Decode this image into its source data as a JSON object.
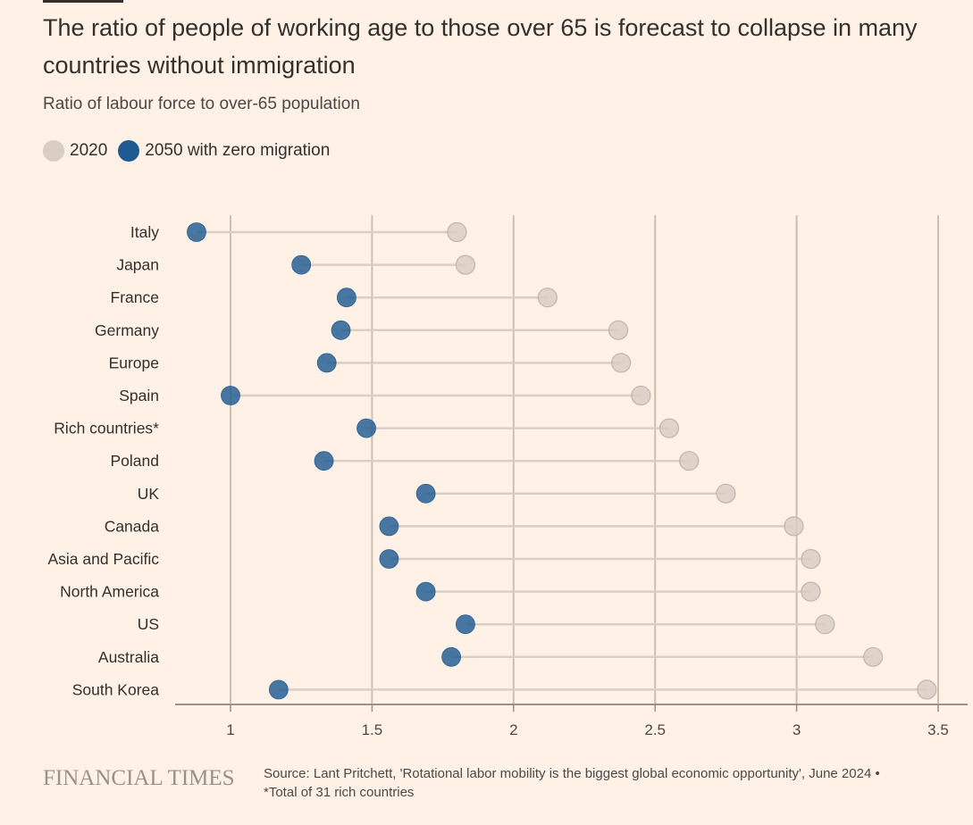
{
  "header": {
    "title": "The ratio of people of working age to those over 65 is forecast to collapse in many countries without immigration",
    "subtitle": "Ratio of labour force to over-65 population"
  },
  "legend": [
    {
      "label": "2020",
      "color": "#d9cdc4"
    },
    {
      "label": "2050 with zero migration",
      "color": "#1f5a91"
    }
  ],
  "colors": {
    "background": "#fff1e5",
    "dot_2020": "#ddd2c9",
    "dot_2050": "#3e6c9c",
    "connector": "#d9cdc4",
    "gridline": "#cbbfb5",
    "axis": "#9b9089"
  },
  "chart_data": {
    "type": "dumbbell",
    "title": "The ratio of people of working age to those over 65 is forecast to collapse in many countries without immigration",
    "subtitle": "Ratio of labour force to over-65 population",
    "xlabel": "",
    "ylabel": "",
    "xlim": [
      0.8,
      3.6
    ],
    "xticks": [
      1,
      1.5,
      2,
      2.5,
      3,
      3.5
    ],
    "xtick_labels": [
      "1",
      "1.5",
      "2",
      "2.5",
      "3",
      "3.5"
    ],
    "grid": "vertical",
    "legend_position": "top-left",
    "categories": [
      "Italy",
      "Japan",
      "France",
      "Germany",
      "Europe",
      "Spain",
      "Rich countries*",
      "Poland",
      "UK",
      "Canada",
      "Asia and Pacific",
      "North America",
      "US",
      "Australia",
      "South Korea"
    ],
    "series": [
      {
        "name": "2020",
        "values": [
          1.8,
          1.83,
          2.12,
          2.37,
          2.38,
          2.45,
          2.55,
          2.62,
          2.75,
          2.99,
          3.05,
          3.05,
          3.1,
          3.27,
          3.46
        ]
      },
      {
        "name": "2050 with zero migration",
        "values": [
          0.88,
          1.25,
          1.41,
          1.39,
          1.34,
          1.0,
          1.48,
          1.33,
          1.69,
          1.56,
          1.56,
          1.69,
          1.83,
          1.78,
          1.17
        ]
      }
    ]
  },
  "footer": {
    "logo": "FINANCIAL TIMES",
    "source_line1": "Source: Lant Pritchett, 'Rotational labor mobility is the biggest global economic opportunity', June 2024 •",
    "source_line2": "*Total of 31 rich countries"
  }
}
